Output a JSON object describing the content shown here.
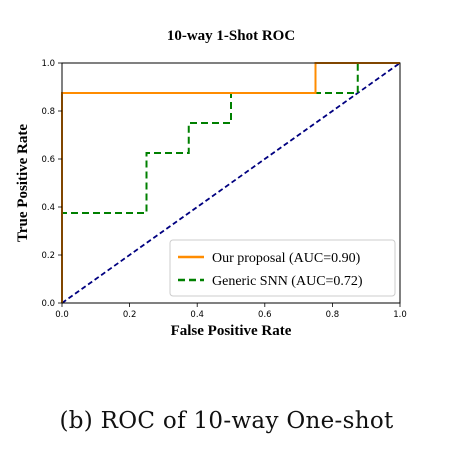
{
  "chart_data": {
    "type": "line",
    "title": "10-way 1-Shot ROC",
    "xlabel": "False Positive Rate",
    "ylabel": "True Positive Rate",
    "xlim": [
      0.0,
      1.0
    ],
    "ylim": [
      0.0,
      1.0
    ],
    "xticks": [
      "0.0",
      "0.2",
      "0.4",
      "0.6",
      "0.8",
      "1.0"
    ],
    "yticks": [
      "0.0",
      "0.2",
      "0.4",
      "0.6",
      "0.8",
      "1.0"
    ],
    "grid": false,
    "legend_position": "lower-right",
    "series": [
      {
        "name": "Our proposal (AUC=0.90)",
        "color": "#ff8c00",
        "style": "solid",
        "x": [
          0.0,
          0.0,
          0.75,
          0.75,
          1.0
        ],
        "y": [
          0.0,
          0.875,
          0.875,
          1.0,
          1.0
        ]
      },
      {
        "name": "Generic SNN (AUC=0.72)",
        "color": "#008000",
        "style": "dashed",
        "x": [
          0.0,
          0.0,
          0.25,
          0.25,
          0.375,
          0.375,
          0.5,
          0.5,
          0.875,
          0.875,
          1.0
        ],
        "y": [
          0.0,
          0.375,
          0.375,
          0.625,
          0.625,
          0.75,
          0.75,
          0.875,
          0.875,
          1.0,
          1.0
        ]
      },
      {
        "name": "",
        "color": "#000080",
        "style": "dashed",
        "x": [
          0.0,
          1.0
        ],
        "y": [
          0.0,
          1.0
        ]
      }
    ]
  },
  "caption": "(b) ROC of 10-way One-shot"
}
